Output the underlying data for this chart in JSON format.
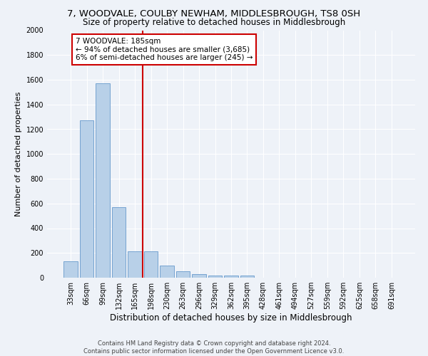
{
  "title": "7, WOODVALE, COULBY NEWHAM, MIDDLESBROUGH, TS8 0SH",
  "subtitle": "Size of property relative to detached houses in Middlesbrough",
  "xlabel": "Distribution of detached houses by size in Middlesbrough",
  "ylabel": "Number of detached properties",
  "footer_line1": "Contains HM Land Registry data © Crown copyright and database right 2024.",
  "footer_line2": "Contains public sector information licensed under the Open Government Licence v3.0.",
  "bar_labels": [
    "33sqm",
    "66sqm",
    "99sqm",
    "132sqm",
    "165sqm",
    "198sqm",
    "230sqm",
    "263sqm",
    "296sqm",
    "329sqm",
    "362sqm",
    "395sqm",
    "428sqm",
    "461sqm",
    "494sqm",
    "527sqm",
    "559sqm",
    "592sqm",
    "625sqm",
    "658sqm",
    "691sqm"
  ],
  "bar_values": [
    135,
    1270,
    1570,
    570,
    215,
    215,
    100,
    50,
    30,
    20,
    20,
    20,
    0,
    0,
    0,
    0,
    0,
    0,
    0,
    0,
    0
  ],
  "bar_color": "#b8d0e8",
  "bar_edge_color": "#6699cc",
  "vline_x": 4.5,
  "annotation_text": "7 WOODVALE: 185sqm\n← 94% of detached houses are smaller (3,685)\n6% of semi-detached houses are larger (245) →",
  "vline_color": "#cc0000",
  "annotation_box_color": "#cc0000",
  "ylim": [
    0,
    2000
  ],
  "yticks": [
    0,
    200,
    400,
    600,
    800,
    1000,
    1200,
    1400,
    1600,
    1800,
    2000
  ],
  "bg_color": "#eef2f8",
  "grid_color": "#ffffff",
  "title_fontsize": 9.5,
  "subtitle_fontsize": 8.5,
  "ylabel_fontsize": 8,
  "xlabel_fontsize": 8.5,
  "tick_fontsize": 7,
  "footer_fontsize": 6,
  "annot_fontsize": 7.5
}
